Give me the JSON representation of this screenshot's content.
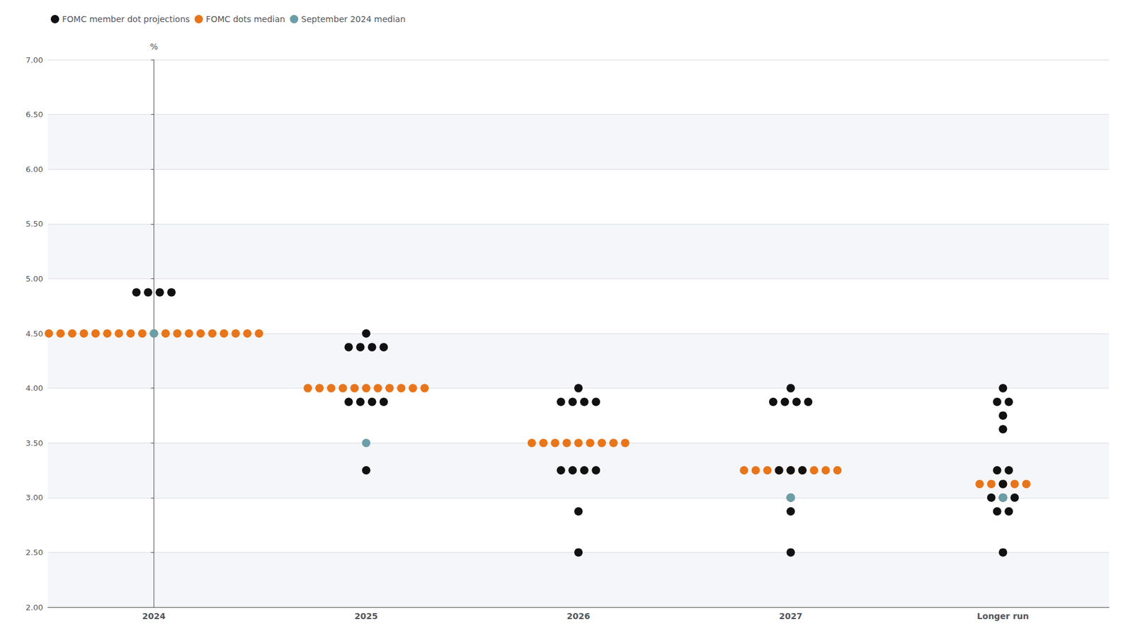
{
  "chart_data": {
    "type": "scatter",
    "categories": [
      "2024",
      "2025",
      "2026",
      "2027",
      "Longer run"
    ],
    "ylabel": "%",
    "ylim": [
      2.0,
      7.0
    ],
    "yticks": [
      {
        "value": 2.0,
        "label": "2.00"
      },
      {
        "value": 2.5,
        "label": "2.50"
      },
      {
        "value": 3.0,
        "label": "3.00"
      },
      {
        "value": 3.5,
        "label": "3.50"
      },
      {
        "value": 4.0,
        "label": "4.00"
      },
      {
        "value": 4.5,
        "label": "4.50"
      },
      {
        "value": 5.0,
        "label": "5.00"
      },
      {
        "value": 5.5,
        "label": "5.50"
      },
      {
        "value": 6.0,
        "label": "6.00"
      },
      {
        "value": 6.5,
        "label": "6.50"
      },
      {
        "value": 7.0,
        "label": "7.00"
      }
    ],
    "grid": true,
    "legend": "upper left",
    "marker": "circle",
    "series": [
      {
        "name": "FOMC member dot projections",
        "color": "#111111",
        "values": [
          [
            4.875,
            4.875,
            4.875,
            4.875
          ],
          [
            4.5,
            4.375,
            4.375,
            4.375,
            4.375,
            3.875,
            3.875,
            3.875,
            3.875,
            3.25
          ],
          [
            4.0,
            3.875,
            3.875,
            3.875,
            3.875,
            3.25,
            3.25,
            3.25,
            3.25,
            2.875,
            2.5
          ],
          [
            4.0,
            3.875,
            3.875,
            3.875,
            3.875,
            3.25,
            3.25,
            3.25,
            3.0,
            2.875,
            2.5
          ],
          [
            4.0,
            3.875,
            3.875,
            3.75,
            3.625,
            3.25,
            3.25,
            3.125,
            3.0,
            3.0,
            3.0,
            2.875,
            2.875,
            2.5
          ]
        ]
      },
      {
        "name": "FOMC dots median",
        "color": "#e8751a",
        "values": [
          [
            4.5,
            4.5,
            4.5,
            4.5,
            4.5,
            4.5,
            4.5,
            4.5,
            4.5,
            4.5,
            4.5,
            4.5,
            4.5,
            4.5,
            4.5,
            4.5,
            4.5,
            4.5,
            4.5
          ],
          [
            4.0,
            4.0,
            4.0,
            4.0,
            4.0,
            4.0,
            4.0,
            4.0,
            4.0,
            4.0,
            4.0
          ],
          [
            3.5,
            3.5,
            3.5,
            3.5,
            3.5,
            3.5,
            3.5,
            3.5,
            3.5
          ],
          [
            3.25,
            3.25,
            3.25,
            3.25,
            3.25,
            3.25,
            3.25,
            3.25,
            3.25
          ],
          [
            3.125,
            3.125,
            3.125,
            3.125,
            3.125
          ]
        ]
      },
      {
        "name": "September 2024 median",
        "color": "#6b9ea8",
        "values": [
          [
            4.5
          ],
          [
            3.5
          ],
          [],
          [
            3.0
          ],
          [
            3.0
          ]
        ]
      }
    ]
  }
}
